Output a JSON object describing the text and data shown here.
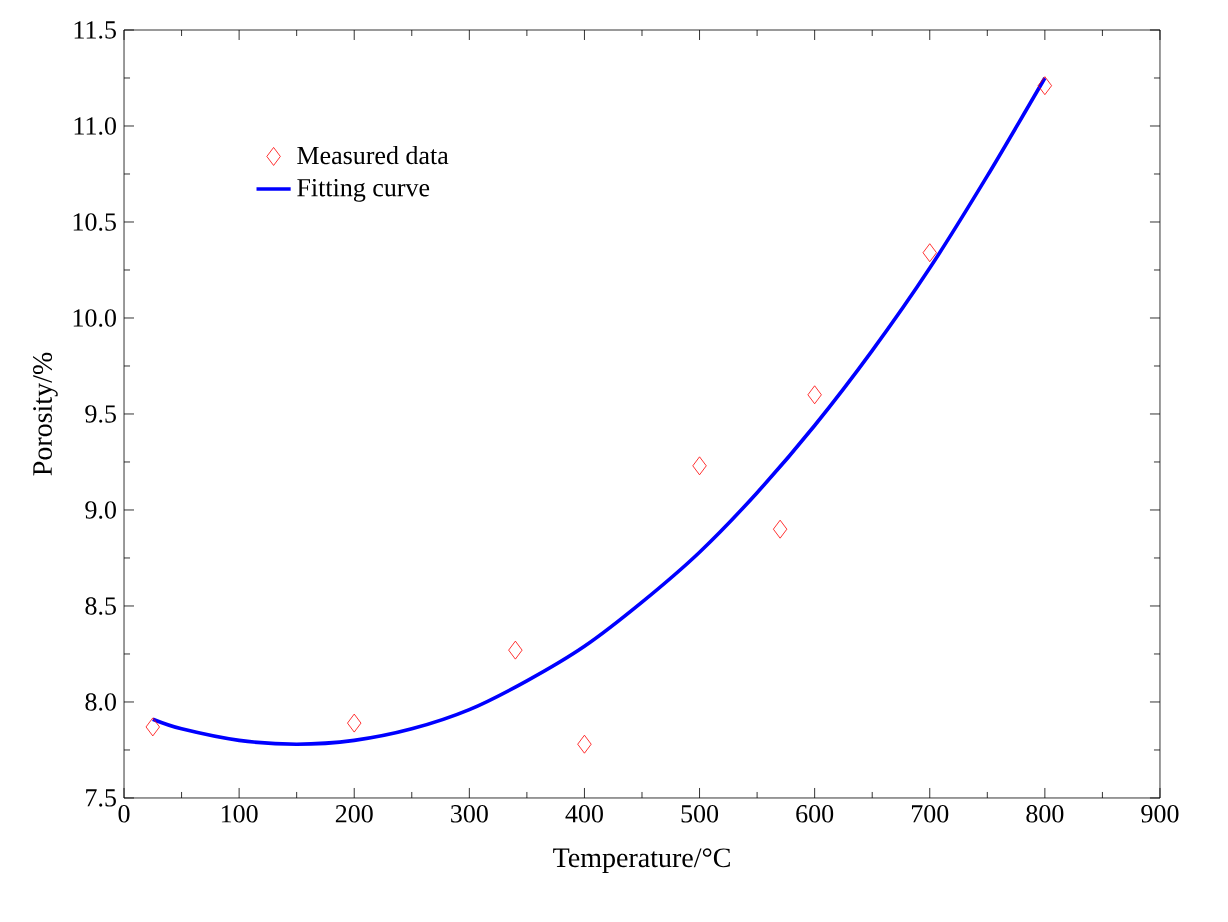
{
  "chart_data": {
    "type": "line",
    "xlabel": "Temperature/°C",
    "ylabel": "Porosity/%",
    "xlim": [
      0,
      900
    ],
    "ylim": [
      7.5,
      11.5
    ],
    "xticks": [
      0,
      100,
      200,
      300,
      400,
      500,
      600,
      700,
      800,
      900
    ],
    "yticks": [
      {
        "value": 7.5,
        "label": "7.5"
      },
      {
        "value": 8.0,
        "label": "8.0"
      },
      {
        "value": 8.5,
        "label": "8.5"
      },
      {
        "value": 9.0,
        "label": "9.0"
      },
      {
        "value": 9.5,
        "label": "9.5"
      },
      {
        "value": 10.0,
        "label": "10.0"
      },
      {
        "value": 10.5,
        "label": "10.5"
      },
      {
        "value": 11.0,
        "label": "11.0"
      },
      {
        "value": 11.5,
        "label": "11.5"
      }
    ],
    "legend": "top left",
    "grid": false,
    "series": [
      {
        "name": "Measured data",
        "type": "scatter",
        "marker": "diamond",
        "color": "#ff0000",
        "x": [
          25,
          200,
          340,
          400,
          500,
          570,
          600,
          700,
          800
        ],
        "values": [
          7.87,
          7.89,
          8.27,
          7.78,
          9.23,
          8.9,
          9.6,
          10.34,
          11.21
        ]
      },
      {
        "name": "Fitting curve",
        "line_style": "solid",
        "color": "#0000ff",
        "x": [
          25,
          50,
          100,
          150,
          200,
          250,
          300,
          350,
          400,
          450,
          500,
          550,
          600,
          650,
          700,
          750,
          800
        ],
        "values": [
          7.91,
          7.86,
          7.8,
          7.78,
          7.8,
          7.86,
          7.96,
          8.11,
          8.29,
          8.52,
          8.78,
          9.09,
          9.44,
          9.83,
          10.26,
          10.74,
          11.25
        ]
      }
    ]
  }
}
